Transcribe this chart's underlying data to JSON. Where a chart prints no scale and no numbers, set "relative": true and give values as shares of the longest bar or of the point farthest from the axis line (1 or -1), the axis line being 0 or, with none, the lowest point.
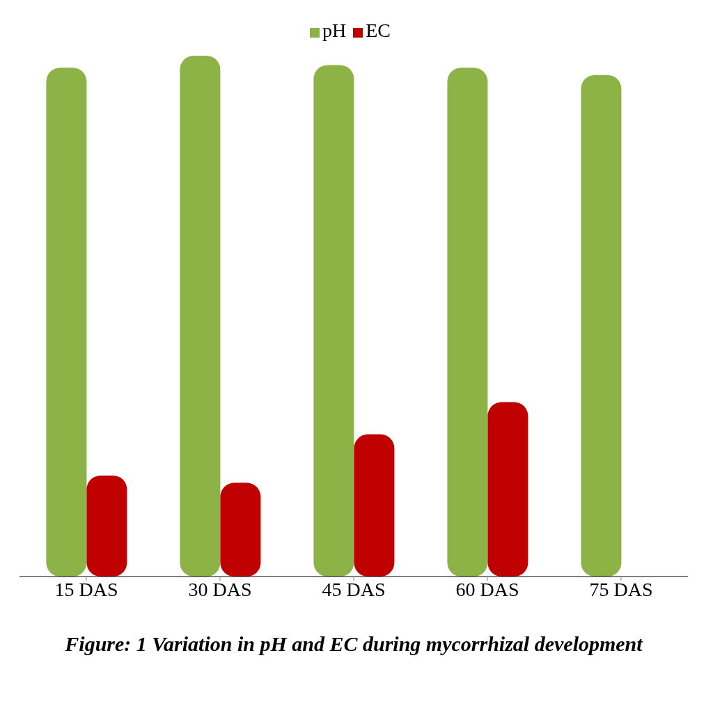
{
  "chart_data": {
    "type": "bar",
    "title": "Figure: 1 Variation in pH and EC during mycorrhizal development",
    "categories": [
      "15 DAS",
      "30 DAS",
      "45 DAS",
      "60 DAS",
      "75 DAS"
    ],
    "relative": true,
    "legend": "top",
    "series": [
      {
        "name": "pH",
        "color": "#8db347",
        "values": [
          0.977,
          1,
          0.982,
          0.977,
          0.963
        ]
      },
      {
        "name": "EC",
        "color": "#c00000",
        "values": [
          0.194,
          0.18,
          0.273,
          0.335,
          null
        ]
      }
    ]
  }
}
